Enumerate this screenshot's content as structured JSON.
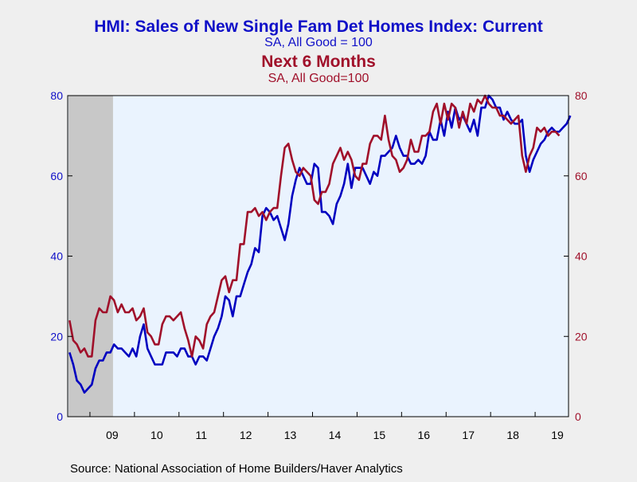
{
  "chart_data": {
    "type": "line",
    "title": "HMI: Sales of New Single Fam Det Homes Index: Current",
    "subtitle": "SA, All Good = 100",
    "title2": "Next 6 Months",
    "subtitle2": "SA, All Good=100",
    "source": "Source:  National Association of Home Builders/Haver Analytics",
    "x_ticks": [
      "09",
      "10",
      "11",
      "12",
      "13",
      "14",
      "15",
      "16",
      "17",
      "18",
      "19"
    ],
    "y_left": {
      "ticks": [
        "0",
        "20",
        "40",
        "60",
        "80"
      ],
      "range": [
        0,
        80
      ]
    },
    "y_right": {
      "ticks": [
        "0",
        "20",
        "40",
        "60",
        "80"
      ],
      "range": [
        0,
        80
      ]
    },
    "recession_shading": [
      "2008-07",
      "2009-06"
    ],
    "grid": false,
    "colors": {
      "current": "#0000c0",
      "next6": "#a0102a",
      "shade": "#c8c8c8",
      "plot_bg": "#eaf3fe"
    },
    "series": [
      {
        "key": "current",
        "axis": "left",
        "start": "2008-07",
        "values": [
          16,
          13,
          9,
          8,
          6,
          7,
          8,
          12,
          14,
          14,
          16,
          16,
          18,
          17,
          17,
          16,
          15,
          17,
          15,
          20,
          23,
          17,
          15,
          13,
          13,
          13,
          16,
          16,
          16,
          15,
          17,
          17,
          15,
          15,
          13,
          15,
          15,
          14,
          17,
          20,
          22,
          25,
          30,
          29,
          25,
          30,
          30,
          33,
          36,
          38,
          42,
          41,
          50,
          52,
          51,
          49,
          50,
          47,
          44,
          48,
          55,
          59,
          62,
          60,
          58,
          58,
          63,
          62,
          51,
          51,
          50,
          48,
          53,
          55,
          58,
          63,
          57,
          62,
          62,
          62,
          60,
          58,
          61,
          60,
          65,
          65,
          66,
          67,
          70,
          67,
          65,
          65,
          63,
          63,
          64,
          63,
          65,
          71,
          69,
          69,
          74,
          70,
          76,
          72,
          77,
          74,
          75,
          73,
          71,
          74,
          70,
          77,
          77,
          80,
          79,
          77,
          77,
          74,
          76,
          74,
          73,
          73,
          74,
          65,
          61,
          64,
          66,
          68,
          69,
          71,
          72,
          71,
          71,
          72,
          73,
          75
        ]
      },
      {
        "key": "next6",
        "axis": "right",
        "start": "2008-07",
        "values": [
          24,
          19,
          18,
          16,
          17,
          15,
          15,
          24,
          27,
          26,
          26,
          30,
          29,
          26,
          28,
          26,
          26,
          27,
          24,
          25,
          27,
          21,
          20,
          18,
          18,
          23,
          25,
          25,
          24,
          25,
          26,
          22,
          19,
          15,
          20,
          19,
          17,
          23,
          25,
          26,
          30,
          34,
          35,
          31,
          34,
          34,
          43,
          43,
          51,
          51,
          52,
          50,
          51,
          49,
          51,
          52,
          52,
          60,
          67,
          68,
          64,
          61,
          60,
          62,
          61,
          60,
          54,
          53,
          56,
          56,
          58,
          63,
          65,
          67,
          64,
          66,
          64,
          60,
          59,
          63,
          63,
          68,
          70,
          70,
          69,
          75,
          69,
          65,
          64,
          61,
          62,
          64,
          69,
          66,
          66,
          70,
          70,
          71,
          76,
          78,
          73,
          78,
          74,
          78,
          77,
          72,
          76,
          73,
          78,
          76,
          79,
          78,
          80,
          78,
          77,
          77,
          75,
          75,
          74,
          73,
          74,
          75,
          65,
          61,
          65,
          67,
          72,
          71,
          72,
          70,
          71,
          71,
          70
        ]
      }
    ]
  }
}
